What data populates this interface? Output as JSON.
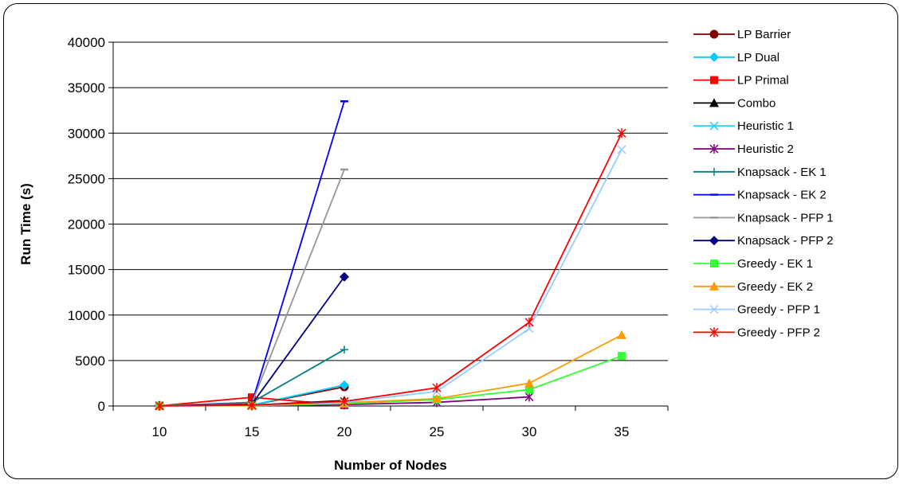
{
  "chart_data": {
    "type": "line",
    "title": "",
    "xlabel": "Number of Nodes",
    "ylabel": "Run Time (s)",
    "categories": [
      "10",
      "15",
      "20",
      "25",
      "30",
      "35"
    ],
    "ylim": [
      0,
      40000
    ],
    "yticks": [
      0,
      5000,
      10000,
      15000,
      20000,
      25000,
      30000,
      35000,
      40000
    ],
    "grid": true,
    "legend_position": "right",
    "series": [
      {
        "name": "LP Barrier",
        "color": "#7f0000",
        "marker": "circle",
        "values": [
          20,
          100,
          2100,
          null,
          null,
          null
        ]
      },
      {
        "name": "LP Dual",
        "color": "#00ccff",
        "marker": "diamond",
        "values": [
          20,
          100,
          2300,
          null,
          null,
          null
        ]
      },
      {
        "name": "LP Primal",
        "color": "#ff0000",
        "marker": "square",
        "values": [
          20,
          950,
          100,
          null,
          null,
          null
        ]
      },
      {
        "name": "Combo",
        "color": "#000000",
        "marker": "triangle",
        "values": [
          20,
          80,
          600,
          null,
          null,
          null
        ]
      },
      {
        "name": "Heuristic 1",
        "color": "#33ccff",
        "marker": "x",
        "values": [
          20,
          50,
          200,
          null,
          null,
          null
        ]
      },
      {
        "name": "Heuristic 2",
        "color": "#800080",
        "marker": "star",
        "values": [
          20,
          40,
          150,
          400,
          1000,
          null
        ]
      },
      {
        "name": "Knapsack - EK 1",
        "color": "#008080",
        "marker": "plus",
        "values": [
          20,
          400,
          6200,
          null,
          null,
          null
        ]
      },
      {
        "name": "Knapsack - EK 2",
        "color": "#0000ff",
        "marker": "dash",
        "values": [
          20,
          300,
          33500,
          null,
          null,
          null
        ]
      },
      {
        "name": "Knapsack - PFP 1",
        "color": "#969696",
        "marker": "dash",
        "values": [
          20,
          300,
          26000,
          null,
          null,
          null
        ]
      },
      {
        "name": "Knapsack - PFP 2",
        "color": "#000080",
        "marker": "diamond",
        "values": [
          20,
          200,
          14200,
          null,
          null,
          null
        ]
      },
      {
        "name": "Greedy - EK 1",
        "color": "#33ff33",
        "marker": "square",
        "values": [
          20,
          60,
          250,
          700,
          1800,
          5500
        ]
      },
      {
        "name": "Greedy - EK 2",
        "color": "#ff9900",
        "marker": "triangle",
        "values": [
          20,
          60,
          350,
          800,
          2500,
          7800
        ]
      },
      {
        "name": "Greedy - PFP 1",
        "color": "#99ccff",
        "marker": "x",
        "values": [
          20,
          100,
          400,
          1600,
          8500,
          28200
        ]
      },
      {
        "name": "Greedy - PFP 2",
        "color": "#ff0000",
        "marker": "star",
        "values": [
          20,
          100,
          500,
          2000,
          9200,
          30000
        ]
      }
    ]
  }
}
